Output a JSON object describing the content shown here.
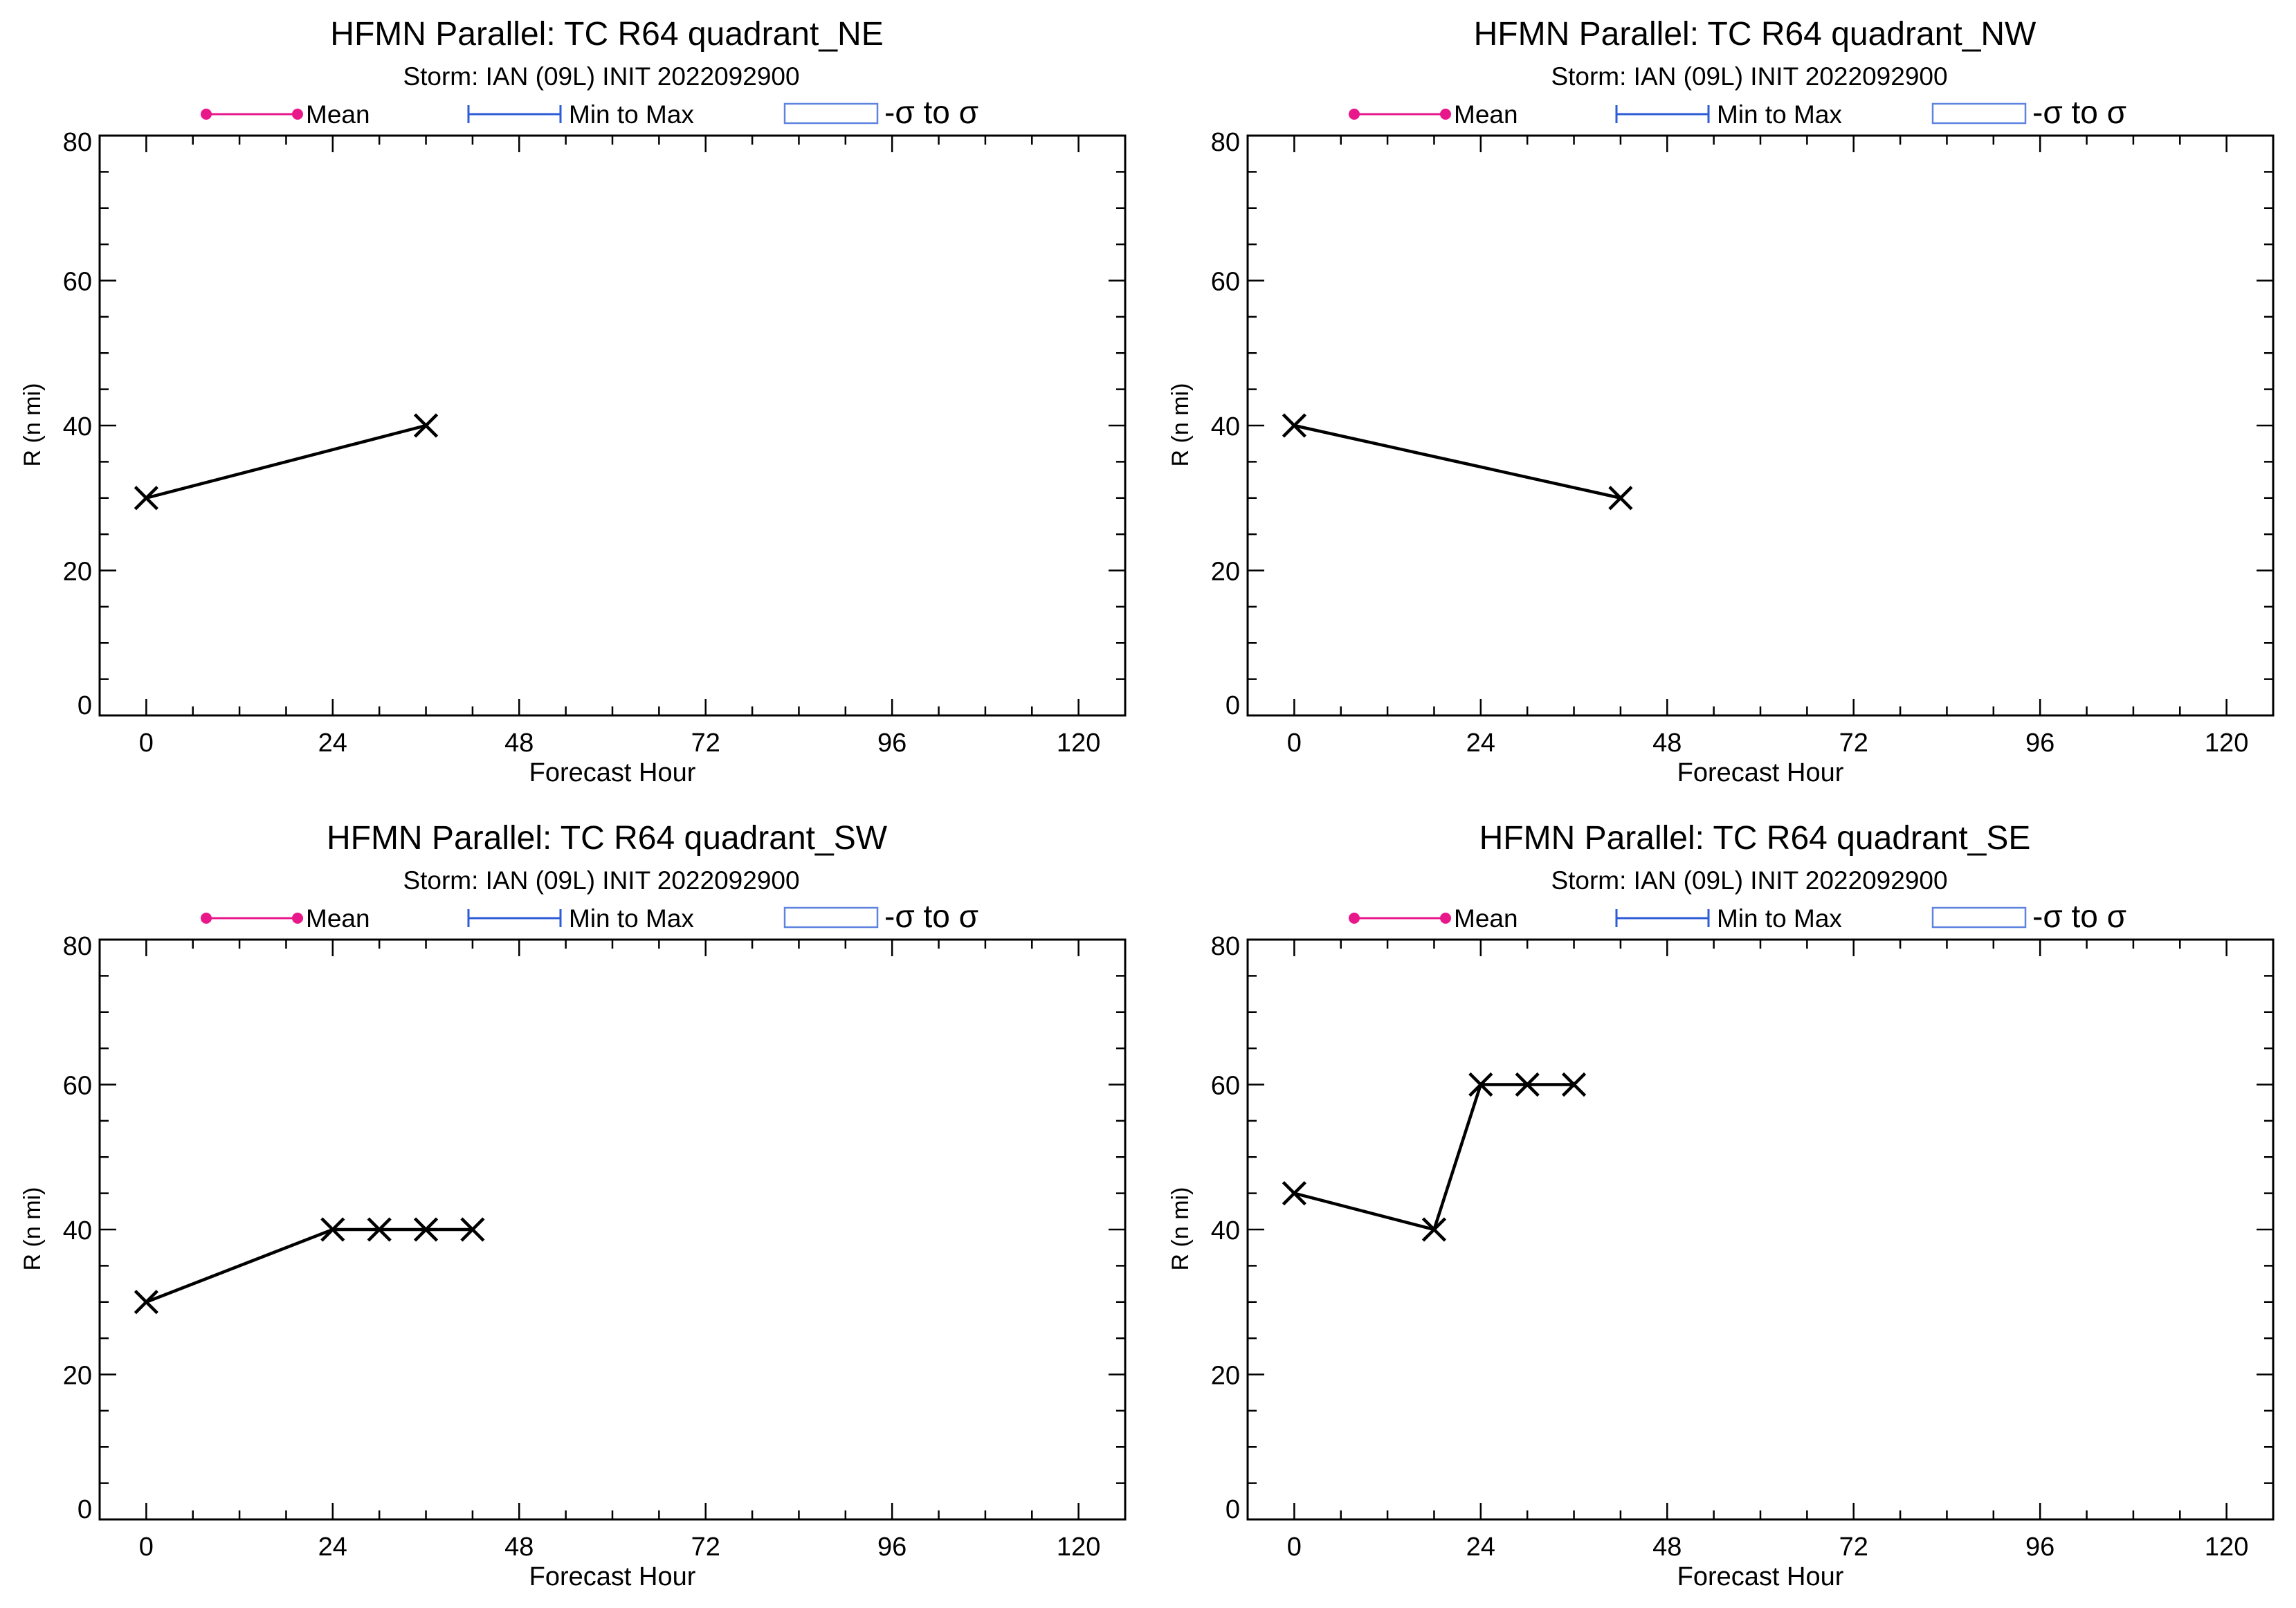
{
  "legend": {
    "mean_label": "Mean",
    "minmax_label": "Min to Max",
    "sigma_label": "-σ to σ",
    "mean_color": "#e8178a",
    "minmax_color": "#2e5bd6",
    "sigma_color": "#5f84e0"
  },
  "chart_data": [
    {
      "type": "line",
      "title": "HFMN Parallel: TC  R64 quadrant_NE",
      "subtitle": "Storm: IAN (09L) INIT 2022092900",
      "xlabel": "Forecast Hour",
      "ylabel": "R (n mi)",
      "xlim": [
        -6,
        126
      ],
      "ylim": [
        0,
        80
      ],
      "xticks": [
        0,
        24,
        48,
        72,
        96,
        120
      ],
      "yticks": [
        0,
        20,
        40,
        60,
        80
      ],
      "marker": "x",
      "series": [
        {
          "x": [
            0,
            36
          ],
          "y": [
            30,
            40
          ]
        }
      ]
    },
    {
      "type": "line",
      "title": "HFMN Parallel: TC  R64 quadrant_NW",
      "subtitle": "Storm: IAN (09L) INIT 2022092900",
      "xlabel": "Forecast Hour",
      "ylabel": "R (n mi)",
      "xlim": [
        -6,
        126
      ],
      "ylim": [
        0,
        80
      ],
      "xticks": [
        0,
        24,
        48,
        72,
        96,
        120
      ],
      "yticks": [
        0,
        20,
        40,
        60,
        80
      ],
      "marker": "x",
      "series": [
        {
          "x": [
            0,
            42
          ],
          "y": [
            40,
            30
          ]
        }
      ]
    },
    {
      "type": "line",
      "title": "HFMN Parallel: TC  R64 quadrant_SW",
      "subtitle": "Storm: IAN (09L) INIT 2022092900",
      "xlabel": "Forecast Hour",
      "ylabel": "R (n mi)",
      "xlim": [
        -6,
        126
      ],
      "ylim": [
        0,
        80
      ],
      "xticks": [
        0,
        24,
        48,
        72,
        96,
        120
      ],
      "yticks": [
        0,
        20,
        40,
        60,
        80
      ],
      "marker": "x",
      "series": [
        {
          "x": [
            0,
            24,
            30,
            36,
            42
          ],
          "y": [
            30,
            40,
            40,
            40,
            40
          ]
        }
      ]
    },
    {
      "type": "line",
      "title": "HFMN Parallel: TC  R64 quadrant_SE",
      "subtitle": "Storm: IAN (09L) INIT 2022092900",
      "xlabel": "Forecast Hour",
      "ylabel": "R (n mi)",
      "xlim": [
        -6,
        126
      ],
      "ylim": [
        0,
        80
      ],
      "xticks": [
        0,
        24,
        48,
        72,
        96,
        120
      ],
      "yticks": [
        0,
        20,
        40,
        60,
        80
      ],
      "marker": "x",
      "series": [
        {
          "x": [
            0,
            18,
            24,
            30,
            36
          ],
          "y": [
            45,
            40,
            60,
            60,
            60
          ]
        }
      ]
    }
  ]
}
